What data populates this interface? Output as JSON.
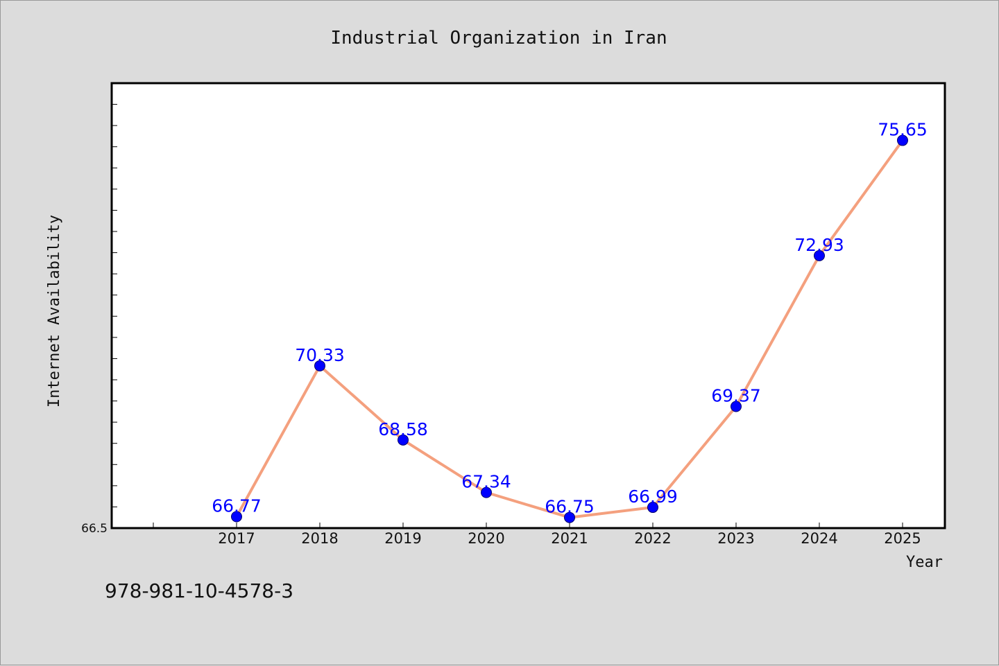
{
  "chart_data": {
    "type": "line",
    "title": "Industrial Organization in Iran",
    "xlabel": "Year",
    "ylabel": "Internet Availability",
    "categories": [
      "2017",
      "2018",
      "2019",
      "2020",
      "2021",
      "2022",
      "2023",
      "2024",
      "2025"
    ],
    "series": [
      {
        "values": [
          66.77,
          70.33,
          68.58,
          67.34,
          66.75,
          66.99,
          69.37,
          72.93,
          75.65
        ],
        "labels": [
          "66.77",
          "70.33",
          "68.58",
          "67.34",
          "66.75",
          "66.99",
          "69.37",
          "72.93",
          "75.65"
        ]
      }
    ],
    "ylim": [
      66.5,
      77.0
    ],
    "yticks_labeled": [
      "66.5"
    ],
    "grid": false,
    "colors": {
      "line": "#f4a07e",
      "marker": "#0000ff",
      "data_label": "#0000ff",
      "background": "#dcdcdc",
      "plot_bg": "#ffffff"
    }
  },
  "footer": {
    "isbn": "978-981-10-4578-3"
  }
}
